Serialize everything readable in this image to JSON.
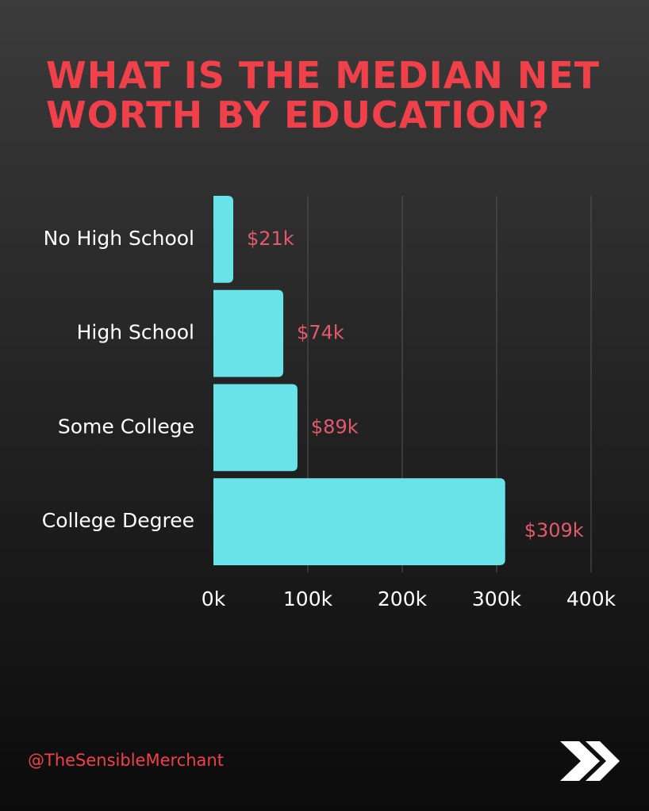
{
  "chart_data": {
    "type": "hbar",
    "title": "WHAT IS THE MEDIAN NET WORTH BY EDUCATION?",
    "categories": [
      "No High School",
      "High School",
      "Some College",
      "College Degree"
    ],
    "values": [
      21,
      74,
      89,
      309
    ],
    "value_labels": [
      "$21k",
      "$74k",
      "$89k",
      "$309k"
    ],
    "color": "#68e4e9",
    "xlim": [
      0,
      400
    ],
    "xticks": [
      {
        "value": 0,
        "label": "0k"
      },
      {
        "value": 100,
        "label": "100k"
      },
      {
        "value": 200,
        "label": "200k"
      },
      {
        "value": 300,
        "label": "300k"
      },
      {
        "value": 400,
        "label": "400k"
      }
    ],
    "grid": true
  },
  "footer": {
    "handle": "@TheSensibleMerchant"
  }
}
